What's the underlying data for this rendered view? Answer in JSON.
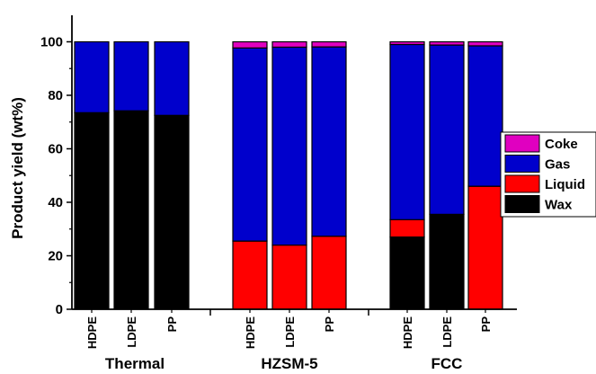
{
  "chart_data": {
    "type": "bar",
    "stacked": true,
    "ylabel": "Product yield (wt%)",
    "ylim": [
      0,
      110
    ],
    "yticks": [
      0,
      20,
      40,
      60,
      80,
      100
    ],
    "legend_position": "right",
    "groups": [
      {
        "label": "Thermal",
        "categories": [
          "HDPE",
          "LDPE",
          "PP"
        ]
      },
      {
        "label": "HZSM-5",
        "categories": [
          "HDPE",
          "LDPE",
          "PP"
        ]
      },
      {
        "label": "FCC",
        "categories": [
          "HDPE",
          "LDPE",
          "PP"
        ]
      }
    ],
    "series": [
      {
        "name": "Wax",
        "color": "#000000",
        "values": [
          73.5,
          74.2,
          72.5,
          0,
          0,
          0,
          27.0,
          35.5,
          0
        ]
      },
      {
        "name": "Liquid",
        "color": "#ff0000",
        "values": [
          0,
          0,
          0,
          25.5,
          24.0,
          27.3,
          6.5,
          0,
          46.0
        ]
      },
      {
        "name": "Gas",
        "color": "#0000cc",
        "values": [
          26.5,
          25.8,
          27.5,
          72.2,
          74.0,
          70.8,
          65.5,
          63.3,
          52.5
        ]
      },
      {
        "name": "Coke",
        "color": "#e000c0",
        "values": [
          0,
          0,
          0,
          2.3,
          2.0,
          1.9,
          1.0,
          1.2,
          1.5
        ]
      }
    ]
  }
}
